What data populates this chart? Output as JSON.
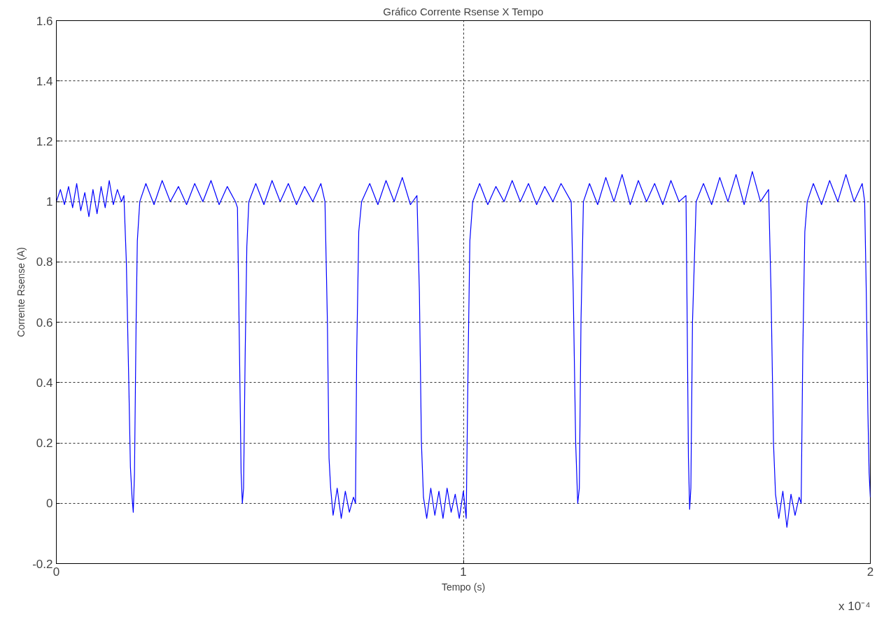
{
  "chart_data": {
    "type": "line",
    "title": "Gráfico Corrente Rsense X Tempo",
    "xlabel": "Tempo (s)",
    "ylabel": "Corrente Rsense (A)",
    "annotations": [
      "x 10⁻⁴"
    ],
    "xlim": [
      0,
      2
    ],
    "xticks": [
      0,
      1,
      2
    ],
    "ylim": [
      -0.2,
      1.6
    ],
    "yticks": [
      -0.2,
      0,
      0.2,
      0.4,
      0.6,
      0.8,
      1,
      1.2,
      1.4,
      1.6
    ],
    "grid": true,
    "line_style": "solid",
    "series": [
      {
        "color": "#0000ff",
        "x": [
          0,
          0.01,
          0.02,
          0.03,
          0.04,
          0.05,
          0.06,
          0.07,
          0.08,
          0.09,
          0.1,
          0.11,
          0.12,
          0.13,
          0.14,
          0.15,
          0.16,
          0.166,
          0.172,
          0.178,
          0.182,
          0.186,
          0.189,
          0.192,
          0.196,
          0.199,
          0.205,
          0.22,
          0.24,
          0.26,
          0.28,
          0.3,
          0.32,
          0.34,
          0.36,
          0.38,
          0.4,
          0.42,
          0.44,
          0.445,
          0.45,
          0.454,
          0.457,
          0.46,
          0.464,
          0.468,
          0.473,
          0.49,
          0.51,
          0.53,
          0.55,
          0.57,
          0.59,
          0.61,
          0.63,
          0.65,
          0.66,
          0.666,
          0.67,
          0.674,
          0.68,
          0.69,
          0.7,
          0.71,
          0.72,
          0.73,
          0.735,
          0.738,
          0.743,
          0.75,
          0.77,
          0.79,
          0.81,
          0.83,
          0.85,
          0.87,
          0.886,
          0.892,
          0.897,
          0.902,
          0.91,
          0.92,
          0.93,
          0.94,
          0.95,
          0.96,
          0.97,
          0.98,
          0.99,
          1.0,
          1.007,
          1.012,
          1.016,
          1.023,
          1.04,
          1.06,
          1.08,
          1.1,
          1.12,
          1.14,
          1.16,
          1.18,
          1.2,
          1.22,
          1.24,
          1.265,
          1.27,
          1.276,
          1.281,
          1.285,
          1.289,
          1.295,
          1.31,
          1.33,
          1.35,
          1.37,
          1.39,
          1.41,
          1.43,
          1.45,
          1.47,
          1.49,
          1.51,
          1.53,
          1.547,
          1.55,
          1.553,
          1.556,
          1.559,
          1.563,
          1.572,
          1.59,
          1.61,
          1.63,
          1.65,
          1.67,
          1.69,
          1.71,
          1.73,
          1.75,
          1.756,
          1.762,
          1.767,
          1.775,
          1.785,
          1.795,
          1.805,
          1.815,
          1.825,
          1.83,
          1.834,
          1.839,
          1.845,
          1.86,
          1.88,
          1.9,
          1.92,
          1.94,
          1.96,
          1.98,
          1.986,
          1.99,
          1.994,
          1.997,
          2.0
        ],
        "values": [
          1.0,
          1.04,
          0.99,
          1.05,
          0.98,
          1.06,
          0.97,
          1.03,
          0.95,
          1.04,
          0.96,
          1.05,
          0.98,
          1.07,
          0.99,
          1.04,
          1.0,
          1.02,
          0.8,
          0.4,
          0.12,
          0.02,
          -0.03,
          0.1,
          0.6,
          0.87,
          1.0,
          1.06,
          0.99,
          1.07,
          1.0,
          1.05,
          0.99,
          1.06,
          1.0,
          1.07,
          0.99,
          1.05,
          1.0,
          0.98,
          0.5,
          0.1,
          0.0,
          0.05,
          0.5,
          0.85,
          1.0,
          1.06,
          0.99,
          1.07,
          1.0,
          1.06,
          0.99,
          1.05,
          1.0,
          1.06,
          1.0,
          0.6,
          0.15,
          0.05,
          -0.04,
          0.05,
          -0.05,
          0.04,
          -0.03,
          0.02,
          0.0,
          0.5,
          0.9,
          1.0,
          1.06,
          0.99,
          1.07,
          1.0,
          1.08,
          0.99,
          1.02,
          0.7,
          0.2,
          0.02,
          -0.05,
          0.05,
          -0.04,
          0.04,
          -0.05,
          0.05,
          -0.03,
          0.03,
          -0.05,
          0.04,
          -0.05,
          0.5,
          0.87,
          1.0,
          1.06,
          0.99,
          1.05,
          1.0,
          1.07,
          1.0,
          1.06,
          0.99,
          1.05,
          1.0,
          1.06,
          1.0,
          0.7,
          0.2,
          0.0,
          0.05,
          0.6,
          1.0,
          1.06,
          0.99,
          1.08,
          1.0,
          1.09,
          0.99,
          1.07,
          1.0,
          1.06,
          0.99,
          1.07,
          1.0,
          1.02,
          0.6,
          0.15,
          -0.02,
          0.05,
          0.6,
          1.0,
          1.06,
          0.99,
          1.08,
          1.0,
          1.09,
          0.99,
          1.1,
          1.0,
          1.04,
          0.7,
          0.2,
          0.03,
          -0.05,
          0.04,
          -0.08,
          0.03,
          -0.04,
          0.02,
          0.0,
          0.5,
          0.9,
          1.0,
          1.06,
          0.99,
          1.07,
          1.0,
          1.09,
          1.0,
          1.06,
          1.0,
          0.7,
          0.3,
          0.1,
          0.02
        ]
      }
    ]
  }
}
